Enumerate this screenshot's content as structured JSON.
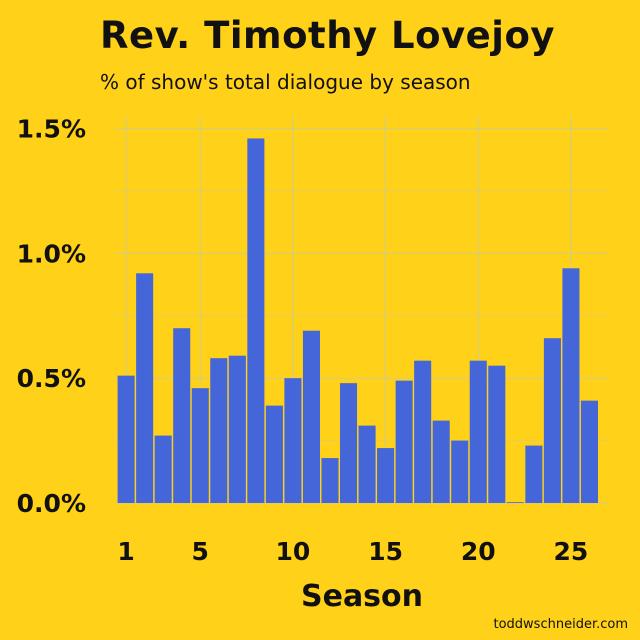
{
  "chart_data": {
    "type": "bar",
    "title": "Rev. Timothy Lovejoy",
    "subtitle": "% of show's total dialogue by season",
    "xlabel": "Season",
    "ylabel": "",
    "x": [
      1,
      2,
      3,
      4,
      5,
      6,
      7,
      8,
      9,
      10,
      11,
      12,
      13,
      14,
      15,
      16,
      17,
      18,
      19,
      20,
      21,
      22,
      23,
      24,
      25,
      26
    ],
    "values": [
      0.51,
      0.92,
      0.27,
      0.7,
      0.46,
      0.58,
      0.59,
      1.46,
      0.39,
      0.5,
      0.69,
      0.18,
      0.48,
      0.31,
      0.22,
      0.49,
      0.57,
      0.33,
      0.25,
      0.57,
      0.55,
      0.0,
      0.23,
      0.66,
      0.94,
      0.41
    ],
    "ylim": [
      0,
      1.55
    ],
    "xlim": [
      0.4,
      27.0
    ],
    "xticks": [
      1,
      5,
      10,
      15,
      20,
      25
    ],
    "xtick_labels": [
      "1",
      "5",
      "10",
      "15",
      "20",
      "25"
    ],
    "yticks": [
      0,
      0.5,
      1.0,
      1.5
    ],
    "ytick_labels": [
      "0.0%",
      "0.5%",
      "1.0%",
      "1.5%"
    ],
    "grid": true,
    "bar_color": "#4466d8",
    "grid_color": "#c9cc9a",
    "background": "#ffd118",
    "credit": "toddwschneider.com"
  }
}
